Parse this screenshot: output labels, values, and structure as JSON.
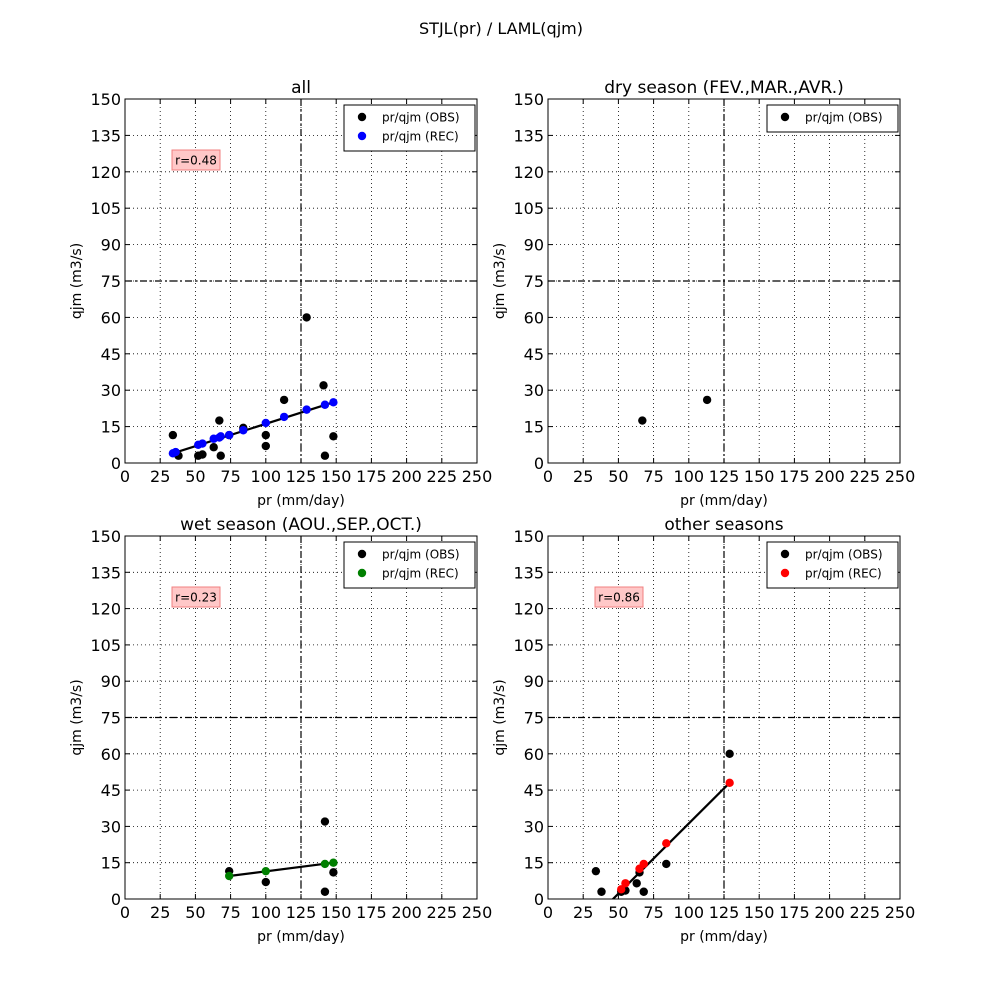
{
  "figure": {
    "suptitle": "STJL(pr) / LAML(qjm)"
  },
  "chart_data": [
    {
      "type": "scatter",
      "title": "all",
      "xlabel": "pr (mm/day)",
      "ylabel": "qjm (m3/s)",
      "xlim": [
        0,
        250
      ],
      "ylim": [
        0,
        150
      ],
      "xticks": [
        0,
        25,
        50,
        75,
        100,
        125,
        150,
        175,
        200,
        225,
        250
      ],
      "yticks": [
        0,
        15,
        30,
        45,
        60,
        75,
        90,
        105,
        120,
        135,
        150
      ],
      "grid": true,
      "threshold_lines": {
        "x": 125,
        "y": 75
      },
      "legend_position": "top-right",
      "correlation_label": "r=0.48",
      "series": [
        {
          "name": "pr/qjm (OBS)",
          "color": "#000000",
          "x": [
            34,
            38,
            52,
            55,
            63,
            67,
            68,
            74,
            84,
            100,
            100,
            113,
            129,
            141,
            142,
            148
          ],
          "y": [
            11.5,
            3,
            3,
            3.5,
            6.5,
            17.5,
            3,
            11.5,
            14.5,
            11.5,
            7,
            26,
            60,
            32,
            3,
            11
          ]
        },
        {
          "name": "pr/qjm (REC)",
          "color": "#0000ff",
          "x": [
            34,
            36,
            52,
            55,
            63,
            67,
            68,
            74,
            84,
            100,
            113,
            129,
            142,
            148
          ],
          "y": [
            4,
            4.5,
            7.5,
            8,
            10,
            10.5,
            11,
            11.5,
            13.5,
            16.5,
            19,
            22,
            24,
            25
          ]
        }
      ],
      "fit_line": {
        "x": [
          34,
          148
        ],
        "y": [
          4,
          25
        ]
      }
    },
    {
      "type": "scatter",
      "title": "dry season (FEV.,MAR.,AVR.)",
      "xlabel": "pr (mm/day)",
      "ylabel": "qjm (m3/s)",
      "xlim": [
        0,
        250
      ],
      "ylim": [
        0,
        150
      ],
      "xticks": [
        0,
        25,
        50,
        75,
        100,
        125,
        150,
        175,
        200,
        225,
        250
      ],
      "yticks": [
        0,
        15,
        30,
        45,
        60,
        75,
        90,
        105,
        120,
        135,
        150
      ],
      "grid": true,
      "threshold_lines": {
        "x": 125,
        "y": 75
      },
      "legend_position": "top-right",
      "correlation_label": "",
      "series": [
        {
          "name": "pr/qjm (OBS)",
          "color": "#000000",
          "x": [
            67,
            113
          ],
          "y": [
            17.5,
            26
          ]
        }
      ],
      "fit_line": null
    },
    {
      "type": "scatter",
      "title": "wet season (AOU.,SEP.,OCT.)",
      "xlabel": "pr (mm/day)",
      "ylabel": "qjm (m3/s)",
      "xlim": [
        0,
        250
      ],
      "ylim": [
        0,
        150
      ],
      "xticks": [
        0,
        25,
        50,
        75,
        100,
        125,
        150,
        175,
        200,
        225,
        250
      ],
      "yticks": [
        0,
        15,
        30,
        45,
        60,
        75,
        90,
        105,
        120,
        135,
        150
      ],
      "grid": true,
      "threshold_lines": {
        "x": 125,
        "y": 75
      },
      "legend_position": "top-right",
      "correlation_label": "r=0.23",
      "series": [
        {
          "name": "pr/qjm (OBS)",
          "color": "#000000",
          "x": [
            74,
            100,
            142,
            142,
            148
          ],
          "y": [
            11.5,
            7,
            32,
            3,
            11
          ]
        },
        {
          "name": "pr/qjm (REC)",
          "color": "#008000",
          "x": [
            74,
            100,
            142,
            148
          ],
          "y": [
            9.5,
            11.5,
            14.5,
            15
          ]
        }
      ],
      "fit_line": {
        "x": [
          74,
          148
        ],
        "y": [
          9.5,
          15
        ]
      }
    },
    {
      "type": "scatter",
      "title": "other seasons",
      "xlabel": "pr (mm/day)",
      "ylabel": "qjm (m3/s)",
      "xlim": [
        0,
        250
      ],
      "ylim": [
        0,
        150
      ],
      "xticks": [
        0,
        25,
        50,
        75,
        100,
        125,
        150,
        175,
        200,
        225,
        250
      ],
      "yticks": [
        0,
        15,
        30,
        45,
        60,
        75,
        90,
        105,
        120,
        135,
        150
      ],
      "grid": true,
      "threshold_lines": {
        "x": 125,
        "y": 75
      },
      "legend_position": "top-right",
      "correlation_label": "r=0.86",
      "series": [
        {
          "name": "pr/qjm (OBS)",
          "color": "#000000",
          "x": [
            34,
            38,
            52,
            55,
            63,
            65,
            68,
            84,
            129
          ],
          "y": [
            11.5,
            3,
            3,
            3.5,
            6.5,
            11,
            3,
            14.5,
            60
          ]
        },
        {
          "name": "pr/qjm (REC)",
          "color": "#ff0000",
          "x": [
            52,
            55,
            65,
            68,
            84,
            129
          ],
          "y": [
            4,
            6.5,
            12.5,
            14.5,
            23,
            48
          ]
        }
      ],
      "fit_line": {
        "x": [
          41,
          129
        ],
        "y": [
          -3,
          48
        ]
      }
    }
  ]
}
